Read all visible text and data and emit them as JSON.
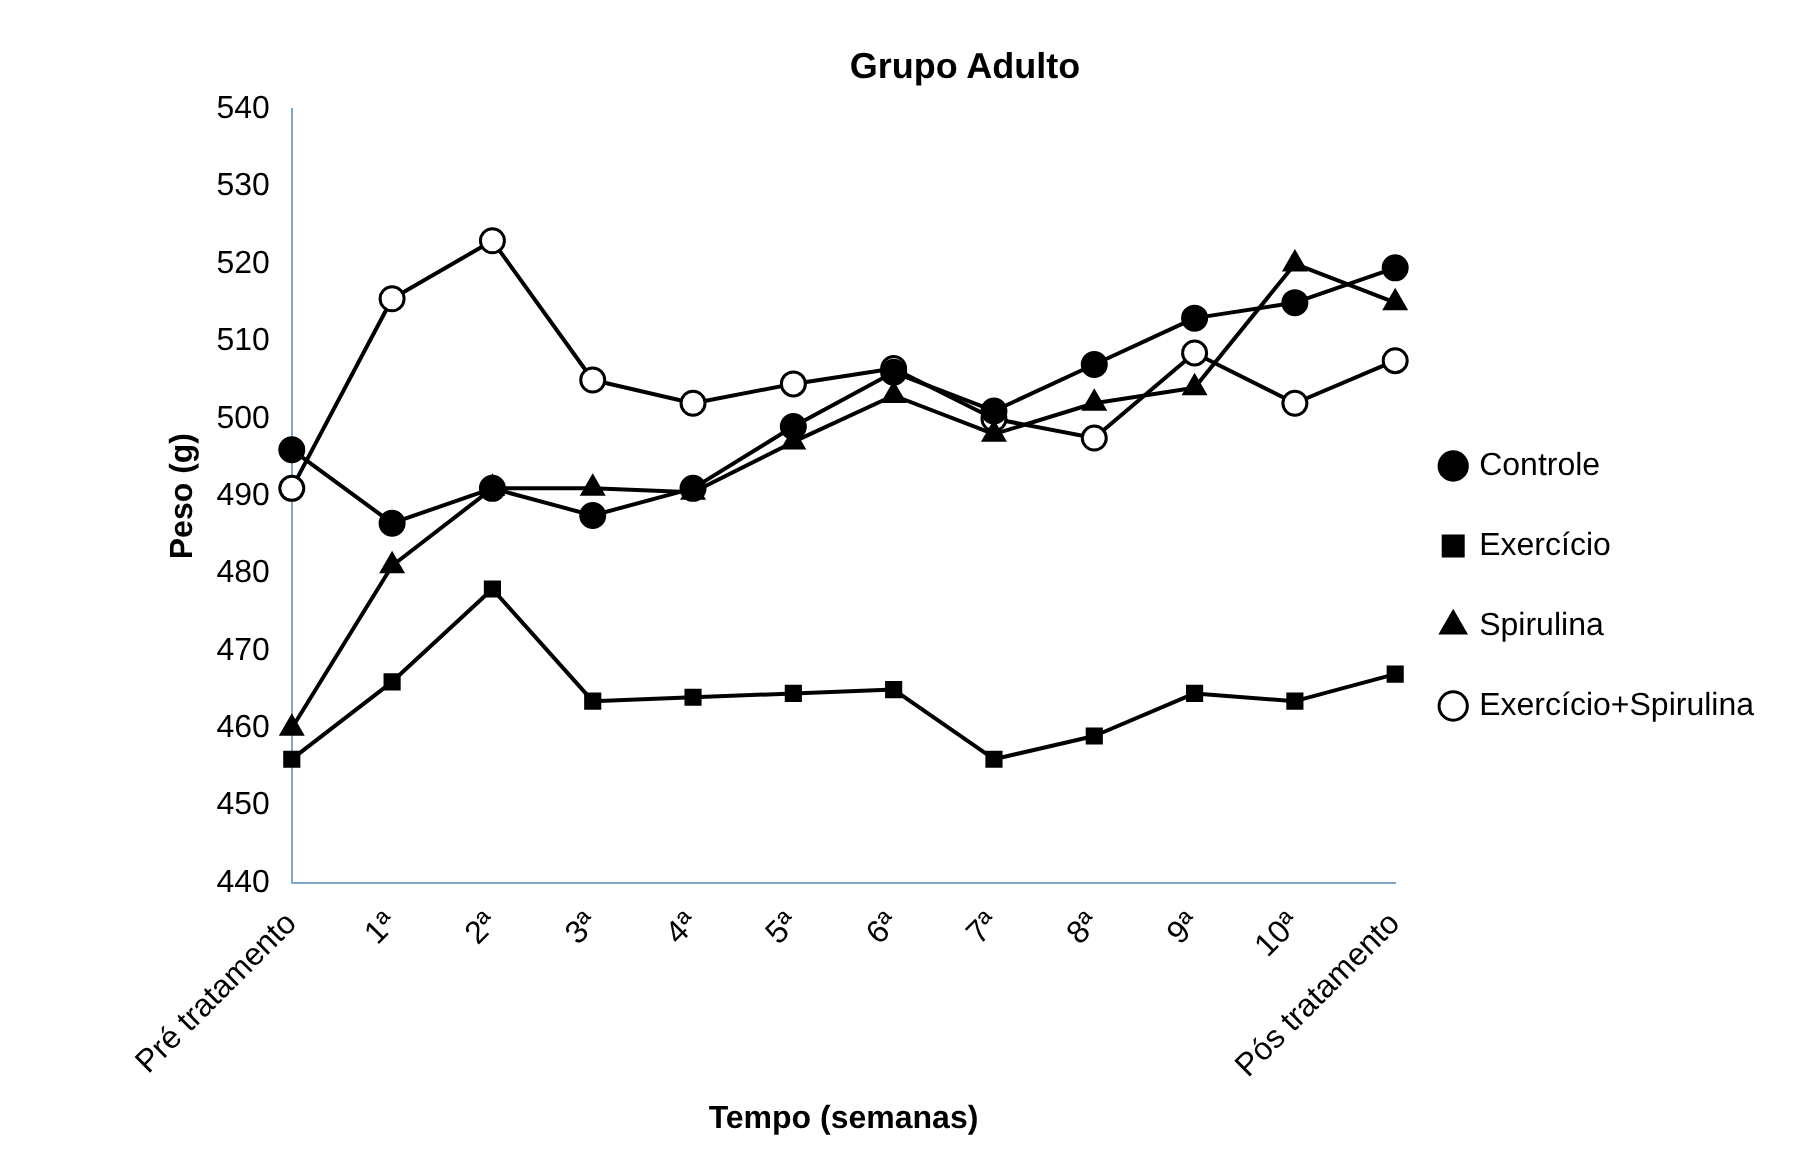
{
  "chart_data": {
    "type": "line",
    "title": "Grupo Adulto",
    "xlabel": "Tempo (semanas)",
    "ylabel": "Peso (g)",
    "categories": [
      "Pré tratamento",
      "1ª",
      "2ª",
      "3ª",
      "4ª",
      "5ª",
      "6ª",
      "7ª",
      "8ª",
      "9ª",
      "10ª",
      "Pós tratamento"
    ],
    "series": [
      {
        "name": "Controle",
        "color": "#000000",
        "marker": "circle",
        "values": [
          496,
          486.5,
          491,
          487.5,
          491,
          499,
          506,
          501,
          507,
          513,
          515,
          519.5
        ]
      },
      {
        "name": "Exercício",
        "color": "#000000",
        "marker": "square",
        "values": [
          456,
          466,
          478,
          463.5,
          464,
          464.5,
          465,
          456,
          459,
          464.5,
          463.5,
          467
        ]
      },
      {
        "name": "Spirulina",
        "color": "#000000",
        "marker": "triangle",
        "values": [
          460,
          481,
          491,
          491,
          490.5,
          497,
          503,
          498,
          502,
          504,
          520,
          515
        ]
      },
      {
        "name": "Exercício+Spirulina",
        "color": "#000000",
        "marker": "circle",
        "values": [
          491,
          515.5,
          523,
          505,
          502,
          504.5,
          506.5,
          500,
          497.5,
          508.5,
          502,
          507.5
        ]
      }
    ],
    "ylim": [
      440,
      540
    ],
    "yticks": [
      440,
      450,
      460,
      470,
      480,
      490,
      500,
      510,
      520,
      530,
      540
    ],
    "grid": false,
    "legend": "right",
    "line_style": "solid"
  }
}
